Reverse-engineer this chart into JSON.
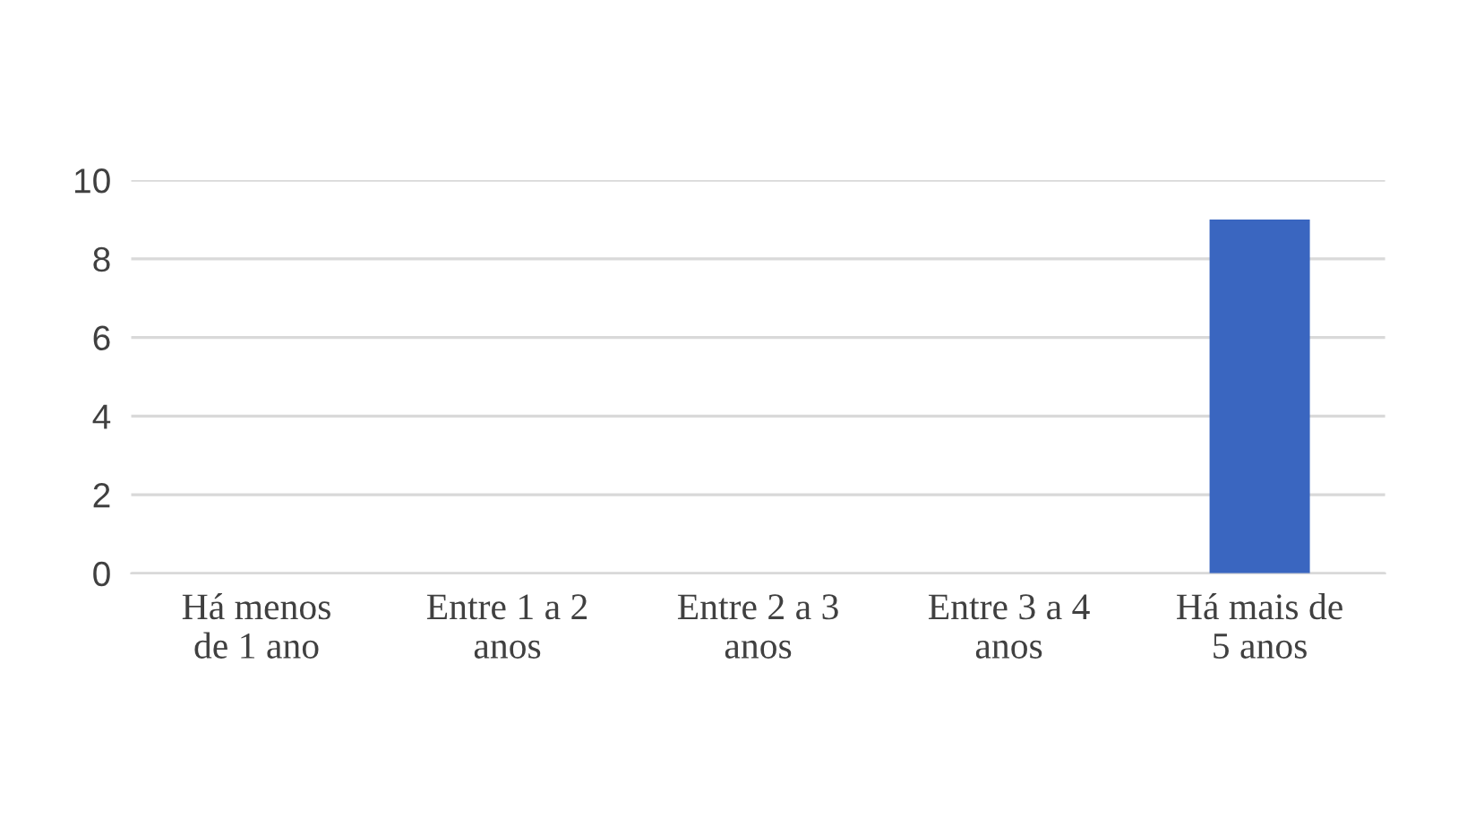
{
  "chart_data": {
    "type": "bar",
    "categories": [
      "Há menos\nde 1 ano",
      "Entre 1 a 2\nanos",
      "Entre 2 a 3\nanos",
      "Entre 3 a 4\nanos",
      "Há mais de\n5 anos"
    ],
    "values": [
      0,
      0,
      0,
      0,
      9
    ],
    "color": "#3a66c0",
    "ylim": [
      0,
      10
    ],
    "yticks": [
      0,
      2,
      4,
      6,
      8,
      10
    ],
    "grid": "y"
  }
}
